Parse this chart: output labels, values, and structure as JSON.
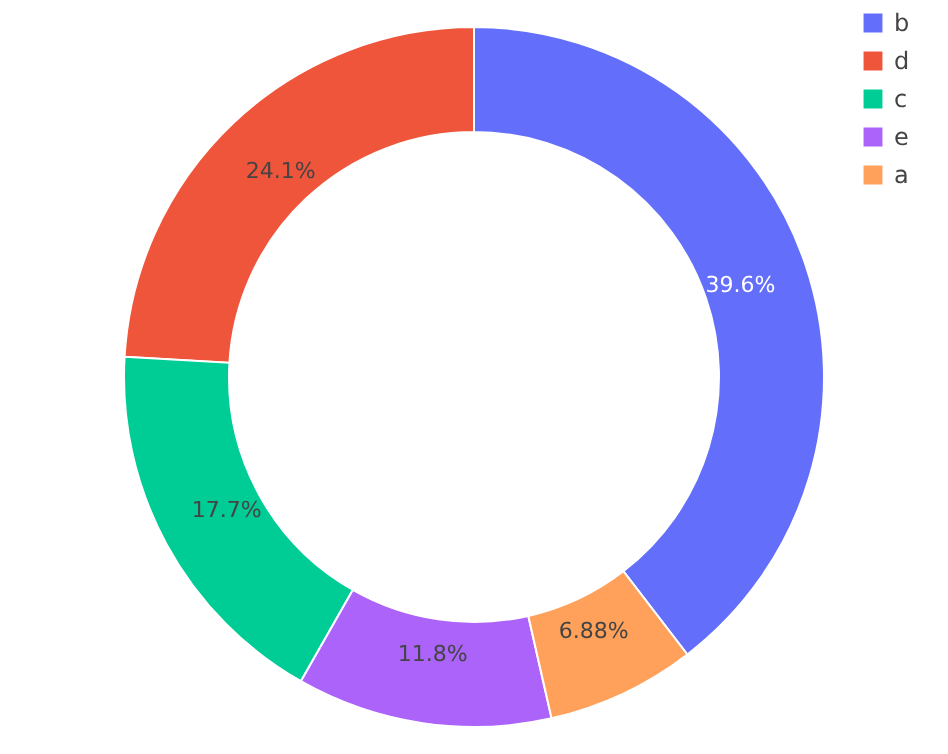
{
  "chart_data": {
    "type": "donut",
    "categories": [
      "b",
      "d",
      "c",
      "e",
      "a"
    ],
    "values": [
      39.6,
      24.1,
      17.7,
      11.8,
      6.88
    ],
    "colors": [
      "#636efa",
      "#ef553b",
      "#00cc96",
      "#ab63fa",
      "#ffa15a"
    ],
    "value_labels": [
      "39.6%",
      "24.1%",
      "17.7%",
      "11.8%",
      "6.88%"
    ],
    "legend": "top right"
  }
}
